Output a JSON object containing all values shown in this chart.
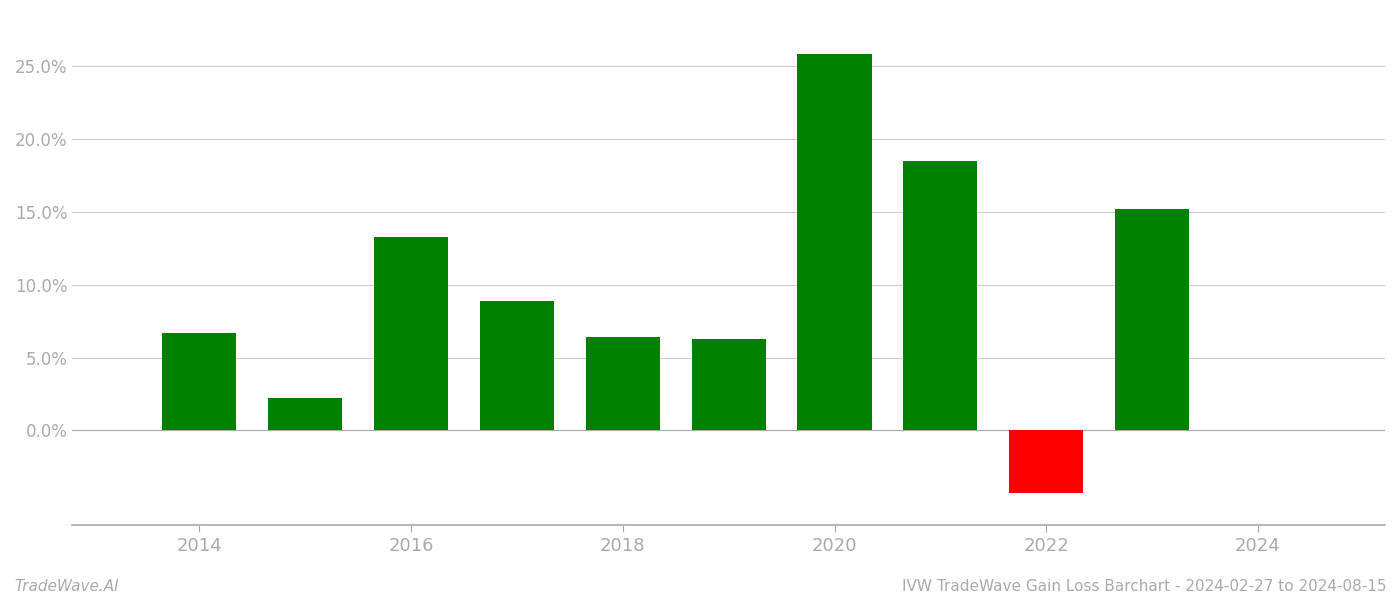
{
  "years": [
    2014,
    2015,
    2016,
    2017,
    2018,
    2019,
    2020,
    2021,
    2022,
    2023
  ],
  "values": [
    0.067,
    0.022,
    0.133,
    0.089,
    0.064,
    0.063,
    0.258,
    0.185,
    -0.043,
    0.152
  ],
  "bar_colors": [
    "#008000",
    "#008000",
    "#008000",
    "#008000",
    "#008000",
    "#008000",
    "#008000",
    "#008000",
    "#ff0000",
    "#008000"
  ],
  "title": "IVW TradeWave Gain Loss Barchart - 2024-02-27 to 2024-08-15",
  "watermark": "TradeWave.AI",
  "ylim_min": -0.065,
  "ylim_max": 0.285,
  "yticks": [
    0.0,
    0.05,
    0.1,
    0.15,
    0.2,
    0.25
  ],
  "xlim_min": 2012.8,
  "xlim_max": 2025.2,
  "xticks": [
    2014,
    2016,
    2018,
    2020,
    2022,
    2024
  ],
  "background_color": "#ffffff",
  "grid_color": "#cccccc",
  "bar_width": 0.7,
  "tick_fontsize": 13,
  "ytick_fontsize": 12,
  "tick_color": "#aaaaaa",
  "watermark_fontsize": 11,
  "title_fontsize": 11,
  "spine_color": "#aaaaaa"
}
